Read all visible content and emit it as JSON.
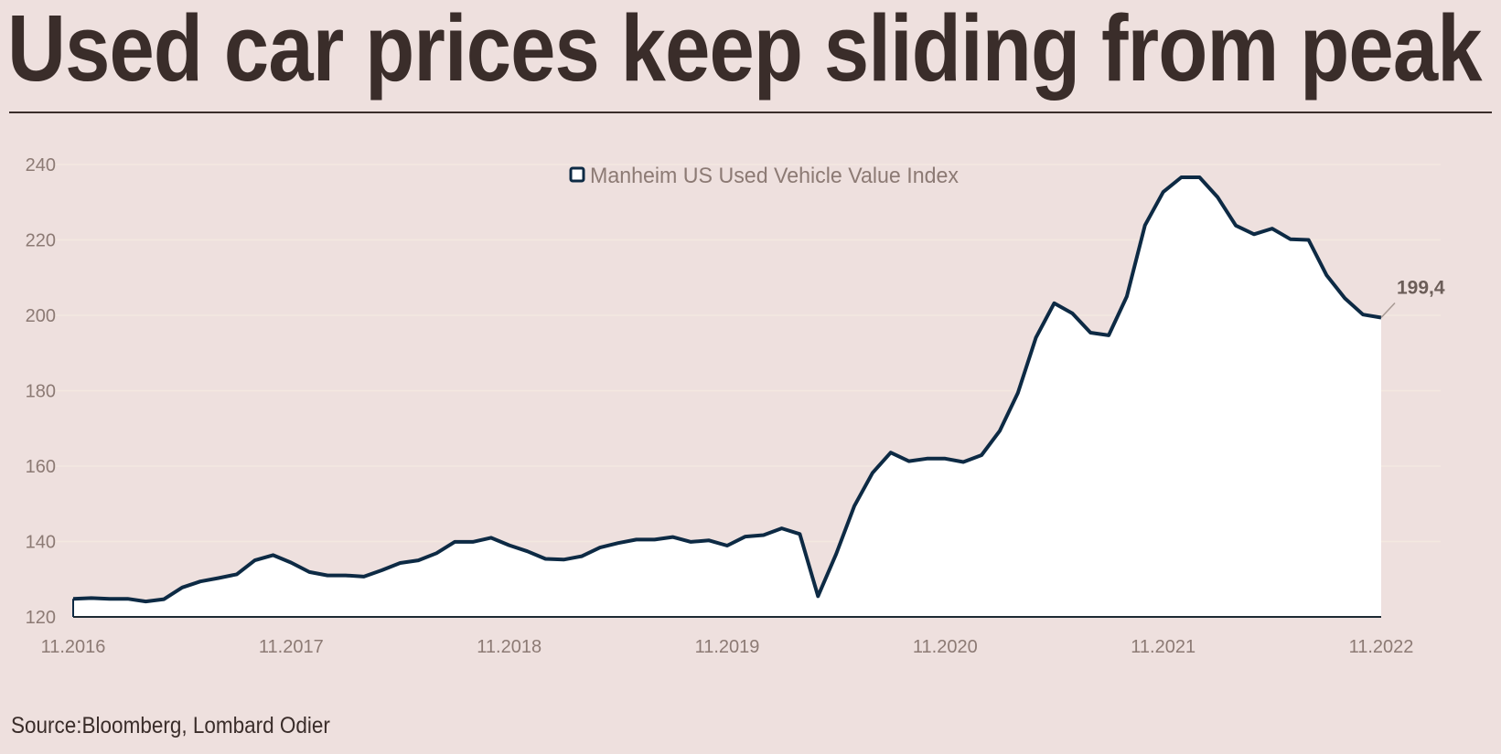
{
  "title": "Used car prices keep sliding from peak",
  "source": "Source:Bloomberg, Lombard Odier",
  "colors": {
    "background": "#eee0de",
    "line": "#0d2a44",
    "area_fill": "#ffffff",
    "axis_text": "#8c7a74",
    "title_text": "#3a2d2a",
    "gridline": "#f3e8e0"
  },
  "chart_data": {
    "type": "area",
    "title": "Used car prices keep sliding from peak",
    "xlabel": "",
    "ylabel": "",
    "ylim": [
      120,
      240
    ],
    "yticks": [
      120,
      140,
      160,
      180,
      200,
      220,
      240
    ],
    "xtick_labels": [
      "11.2016",
      "11.2017",
      "11.2018",
      "11.2019",
      "11.2020",
      "11.2021",
      "11.2022"
    ],
    "grid": true,
    "legend": {
      "position": "top-center",
      "entries": [
        "Manheim US Used Vehicle Value Index"
      ]
    },
    "annotation": {
      "label": "199,4",
      "target": "last point"
    },
    "series": [
      {
        "name": "Manheim US Used Vehicle Value Index",
        "frequency": "monthly",
        "start": "11.2016",
        "end": "11.2022",
        "values": [
          124.8,
          125.0,
          124.8,
          124.8,
          124.1,
          124.7,
          127.8,
          129.4,
          130.3,
          131.3,
          135.0,
          136.4,
          134.4,
          131.9,
          131.0,
          131.0,
          130.7,
          132.4,
          134.3,
          135.0,
          136.9,
          139.9,
          139.9,
          141.0,
          139.0,
          137.4,
          135.4,
          135.2,
          136.1,
          138.4,
          139.6,
          140.5,
          140.5,
          141.2,
          139.9,
          140.3,
          138.9,
          141.3,
          141.7,
          143.5,
          142.0,
          125.5,
          136.7,
          149.4,
          158.2,
          163.6,
          161.3,
          162.0,
          162.0,
          161.1,
          162.9,
          169.3,
          179.4,
          194.1,
          203.2,
          200.5,
          195.4,
          194.7,
          205.0,
          223.9,
          232.7,
          236.6,
          236.6,
          231.3,
          223.8,
          221.5,
          223.0,
          220.2,
          220.0,
          210.6,
          204.5,
          200.2,
          199.4
        ]
      }
    ]
  }
}
